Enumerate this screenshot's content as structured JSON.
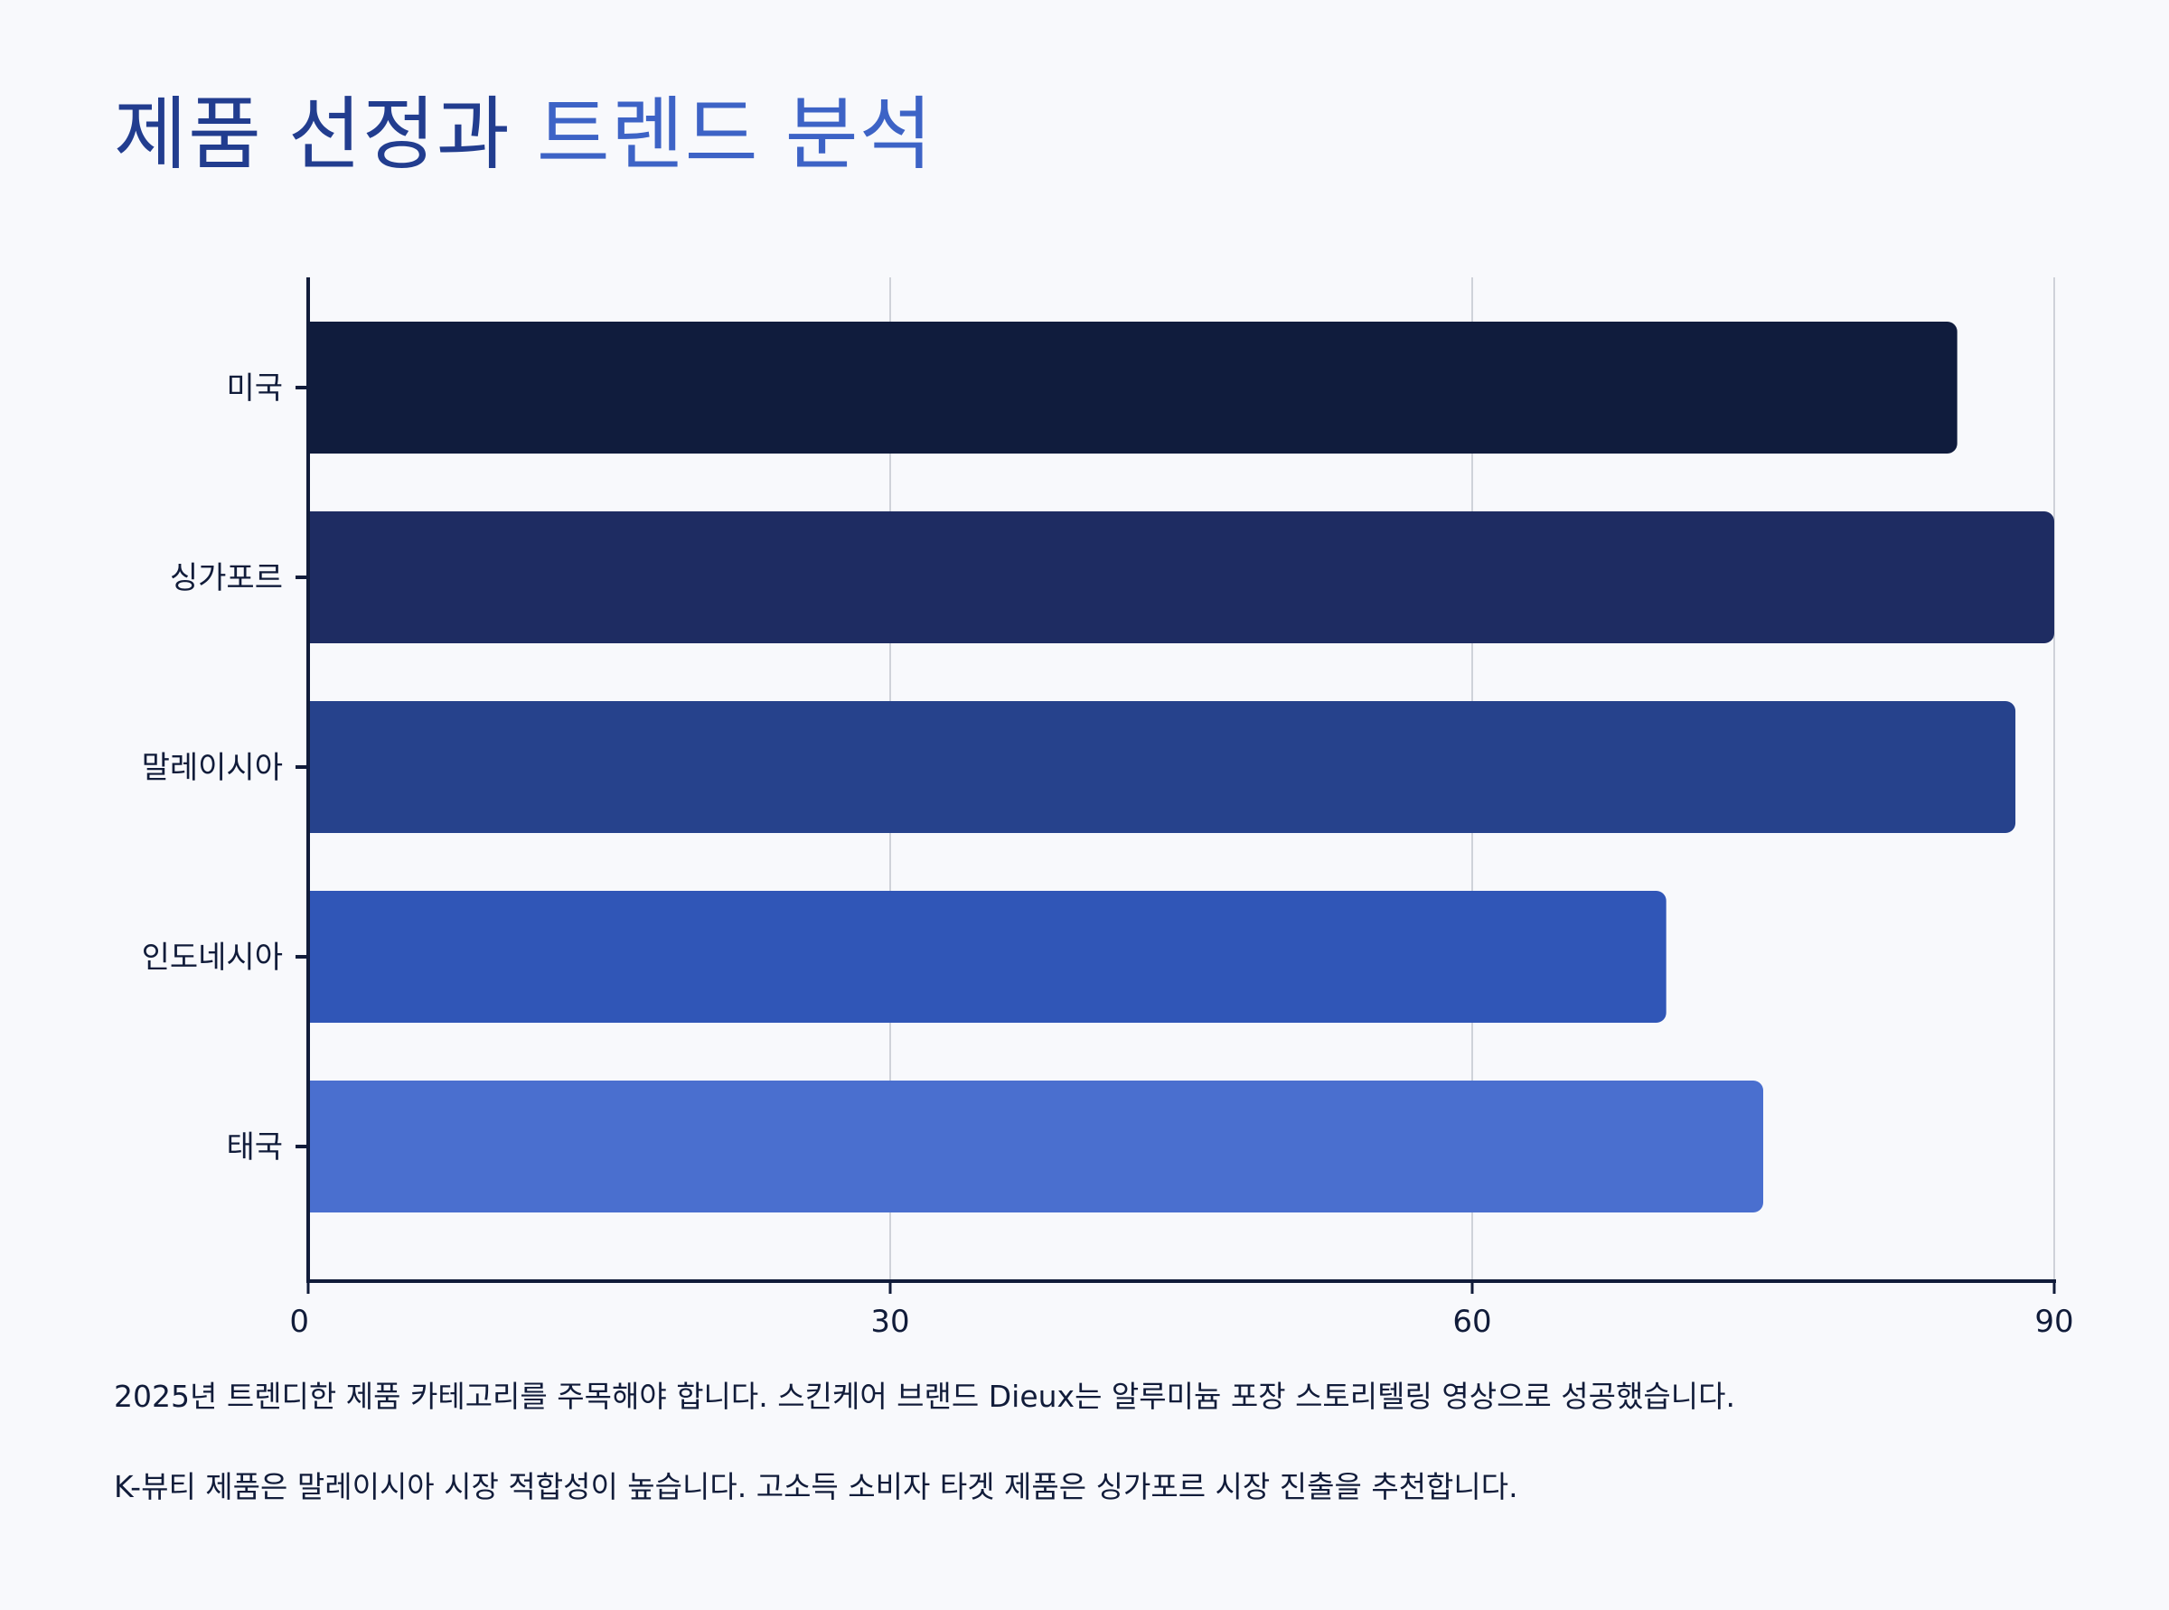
{
  "title": {
    "part1": "제품 선정과",
    "part2": "트렌드 분석"
  },
  "chart_data": {
    "type": "bar",
    "orientation": "horizontal",
    "categories": [
      "미국",
      "싱가포르",
      "말레이시아",
      "인도네시아",
      "태국"
    ],
    "values": [
      85,
      90,
      88,
      70,
      75
    ],
    "colors": [
      "#101c3d",
      "#1e2c62",
      "#26428c",
      "#3056b7",
      "#4a6fcf"
    ],
    "xlim": [
      0,
      90
    ],
    "xticks": [
      0,
      30,
      60,
      90
    ],
    "grid": true,
    "xlabel": "",
    "ylabel": ""
  },
  "notes": [
    "2025년 트렌디한 제품 카테고리를 주목해야 합니다. 스킨케어 브랜드 Dieux는 알루미늄 포장 스토리텔링 영상으로 성공했습니다.",
    "K-뷰티 제품은 말레이시아 시장 적합성이 높습니다. 고소득 소비자 타겟 제품은 싱가포르 시장 진출을 추천합니다."
  ]
}
